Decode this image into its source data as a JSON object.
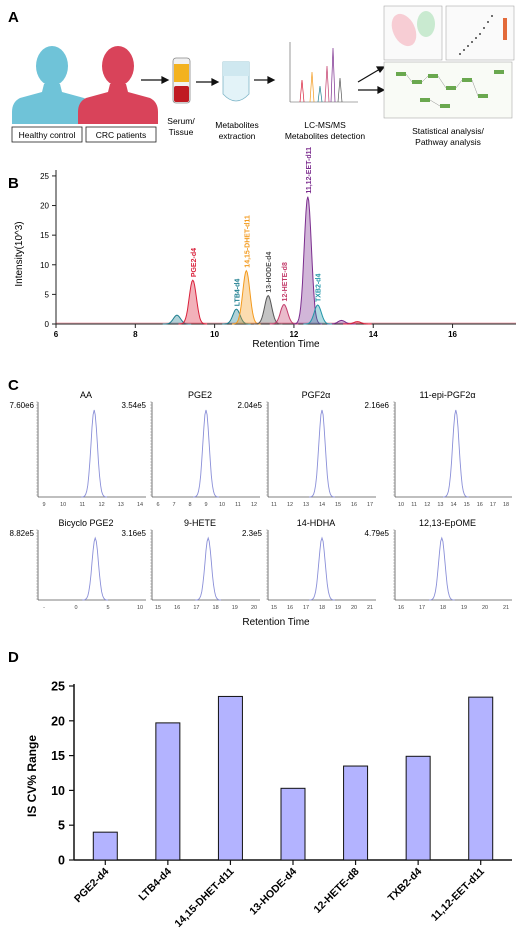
{
  "panels": {
    "a": "A",
    "b": "B",
    "c": "C",
    "d": "D"
  },
  "workflow": {
    "groups": [
      "Healthy control",
      "CRC patients"
    ],
    "serum": [
      "Serum/",
      "Tissue"
    ],
    "extraction": [
      "Metabolites",
      "extraction"
    ],
    "lcms": [
      "LC-MS/MS",
      "Metabolites detection"
    ],
    "analysis": [
      "Statistical analysis/",
      "Pathway analysis"
    ],
    "colors": {
      "healthy": "#6fc3d8",
      "crc": "#d9435a"
    }
  },
  "chart_b": {
    "type": "line",
    "ylabel": "Intensity(10^3)",
    "xlabel": "Retention Time",
    "xlim": [
      6,
      17.6
    ],
    "ylim": [
      0,
      26
    ],
    "xticks": [
      6,
      8,
      10,
      12,
      14,
      16
    ],
    "yticks": [
      0,
      5,
      10,
      15,
      20,
      25
    ],
    "peaks": [
      {
        "name": "PGE2-d4",
        "rt": 9.45,
        "height": 7.4,
        "color": "#d9203a"
      },
      {
        "name": "LTB4-d4",
        "rt": 10.55,
        "height": 2.5,
        "color": "#1c7d8e"
      },
      {
        "name": "14,15-DHET-d11",
        "rt": 10.8,
        "height": 9.0,
        "color": "#f39a1d"
      },
      {
        "name": "13-HODE-d4",
        "rt": 11.35,
        "height": 4.8,
        "color": "#555555"
      },
      {
        "name": "12-HETE-d8",
        "rt": 11.75,
        "height": 3.3,
        "color": "#c23b6a"
      },
      {
        "name": "11,12-EET-d11",
        "rt": 12.35,
        "height": 21.5,
        "color": "#7b2d8e"
      },
      {
        "name": "TXB2-d4",
        "rt": 12.6,
        "height": 3.2,
        "color": "#2196a8"
      }
    ],
    "minor_peaks": [
      {
        "rt": 9.05,
        "height": 1.5,
        "color": "#1c7d8e"
      },
      {
        "rt": 13.2,
        "height": 0.6,
        "color": "#7b2d8e"
      },
      {
        "rt": 13.6,
        "height": 0.4,
        "color": "#d9203a"
      }
    ]
  },
  "chart_c": {
    "type": "line",
    "xlabel": "Retention Time",
    "plots": [
      {
        "name": "AA",
        "left_max": "7.60e6",
        "right_max": "3.54e5",
        "ticks": [
          "9",
          "10",
          "11",
          "12",
          "13",
          "14"
        ],
        "peak_frac": 0.52
      },
      {
        "name": "PGE2",
        "right_max": "2.04e5",
        "ticks": [
          "6",
          "7",
          "8",
          "9",
          "10",
          "11",
          "12"
        ],
        "peak_frac": 0.5
      },
      {
        "name": "PGF2α",
        "right_max": "2.16e6",
        "ticks": [
          "11",
          "12",
          "13",
          "14",
          "15",
          "16",
          "17"
        ],
        "peak_frac": 0.5
      },
      {
        "name": "11-epi-PGF2α",
        "ticks": [
          "10",
          "11",
          "12",
          "13",
          "14",
          "15",
          "16",
          "17",
          "18"
        ],
        "peak_frac": 0.52
      },
      {
        "name": "Bicyclo PGE2",
        "left_max": "8.82e5",
        "right_max": "3.16e5",
        "ticks": [
          "-",
          "0",
          "5",
          "10"
        ],
        "peak_frac": 0.53
      },
      {
        "name": "9-HETE",
        "right_max": "2.3e5",
        "ticks": [
          "15",
          "16",
          "17",
          "18",
          "19",
          "20"
        ],
        "peak_frac": 0.52
      },
      {
        "name": "14-HDHA",
        "right_max": "4.79e5",
        "ticks": [
          "15",
          "16",
          "17",
          "18",
          "19",
          "20",
          "21"
        ],
        "peak_frac": 0.5
      },
      {
        "name": "12,13-EpOME",
        "ticks": [
          "16",
          "17",
          "18",
          "19",
          "20",
          "21"
        ],
        "peak_frac": 0.4
      }
    ]
  },
  "chart_data": {
    "type": "bar",
    "categories": [
      "PGE2-d4",
      "LTB4-d4",
      "14,15-DHET-d11",
      "13-HODE-d4",
      "12-HETE-d8",
      "TXB2-d4",
      "11,12-EET-d11"
    ],
    "values": [
      4.0,
      19.7,
      23.5,
      10.3,
      13.5,
      14.9,
      23.4
    ],
    "ylabel": "IS CV% Range",
    "ylim": [
      0,
      25
    ],
    "yticks": [
      0,
      5,
      10,
      15,
      20,
      25
    ],
    "bar_color": "#b3b3ff"
  }
}
